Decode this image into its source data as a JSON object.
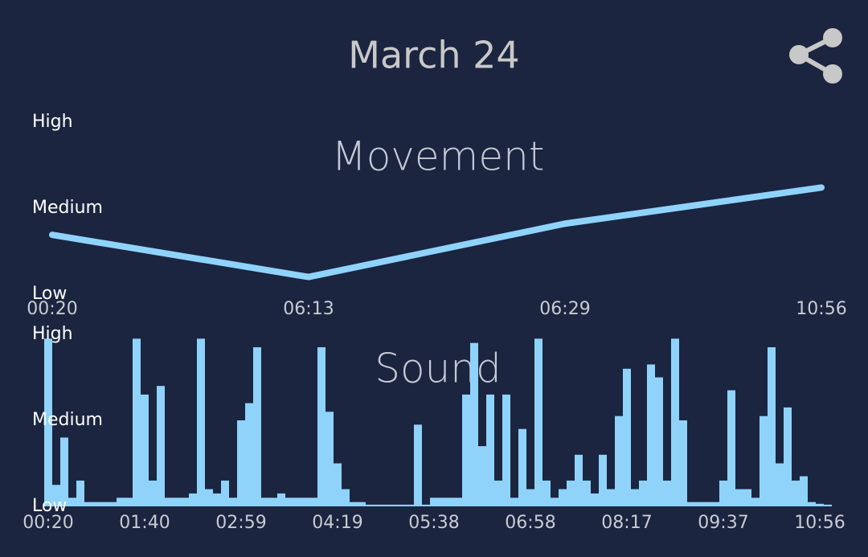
{
  "header": {
    "title": "March 24"
  },
  "chart_data": [
    {
      "type": "line",
      "title": "Movement",
      "color": "#8fd3fb",
      "categories": [
        "00:20",
        "06:13",
        "06:29",
        "10:56"
      ],
      "values": [
        0.69,
        0.2,
        0.82,
        1.24
      ],
      "ylim": [
        0,
        2
      ],
      "yticks": [
        {
          "value": 0,
          "label": "Low"
        },
        {
          "value": 1,
          "label": "Medium"
        },
        {
          "value": 2,
          "label": "High"
        }
      ]
    },
    {
      "type": "bar",
      "title": "Sound",
      "color": "#8fd3fb",
      "categories": [
        "00:20",
        null,
        null,
        null,
        null,
        null,
        null,
        null,
        null,
        null,
        null,
        null,
        "01:40",
        null,
        null,
        null,
        null,
        null,
        null,
        null,
        null,
        null,
        null,
        null,
        "02:59",
        null,
        null,
        null,
        null,
        null,
        null,
        null,
        null,
        null,
        null,
        null,
        "04:19",
        null,
        null,
        null,
        null,
        null,
        null,
        null,
        null,
        null,
        null,
        null,
        "05:38",
        null,
        null,
        null,
        null,
        null,
        null,
        null,
        null,
        null,
        null,
        null,
        "06:58",
        null,
        null,
        null,
        null,
        null,
        null,
        null,
        null,
        null,
        null,
        null,
        "08:17",
        null,
        null,
        null,
        null,
        null,
        null,
        null,
        null,
        null,
        null,
        null,
        "09:37",
        null,
        null,
        null,
        null,
        null,
        null,
        null,
        null,
        null,
        null,
        null,
        "10:56",
        null
      ],
      "values": [
        1.95,
        0.25,
        0.8,
        0.1,
        0.3,
        0.05,
        0.05,
        0.05,
        0.05,
        0.1,
        0.1,
        1.95,
        1.3,
        0.3,
        1.4,
        0.1,
        0.1,
        0.1,
        0.15,
        1.95,
        0.2,
        0.15,
        0.3,
        0.1,
        1.0,
        1.2,
        1.85,
        0.1,
        0.1,
        0.15,
        0.1,
        0.1,
        0.1,
        0.1,
        1.85,
        1.1,
        0.5,
        0.2,
        0.05,
        0.05,
        0.02,
        0.02,
        0.02,
        0.02,
        0.02,
        0.02,
        0.95,
        0.02,
        0.1,
        0.1,
        0.1,
        0.1,
        1.3,
        1.9,
        0.7,
        1.3,
        0.3,
        1.3,
        0.1,
        0.9,
        0.2,
        1.95,
        0.3,
        0.1,
        0.2,
        0.3,
        0.6,
        0.3,
        0.15,
        0.6,
        0.2,
        1.05,
        1.6,
        0.2,
        0.3,
        1.65,
        1.5,
        0.3,
        1.95,
        1.0,
        0.05,
        0.05,
        0.05,
        0.05,
        0.3,
        1.35,
        0.2,
        0.2,
        0.1,
        1.05,
        1.85,
        0.5,
        1.15,
        0.3,
        0.35,
        0.05,
        0.03,
        0.02
      ],
      "ylim": [
        0,
        2
      ],
      "yticks": [
        {
          "value": 0,
          "label": "Low"
        },
        {
          "value": 1,
          "label": "Medium"
        },
        {
          "value": 2,
          "label": "High"
        }
      ]
    }
  ]
}
